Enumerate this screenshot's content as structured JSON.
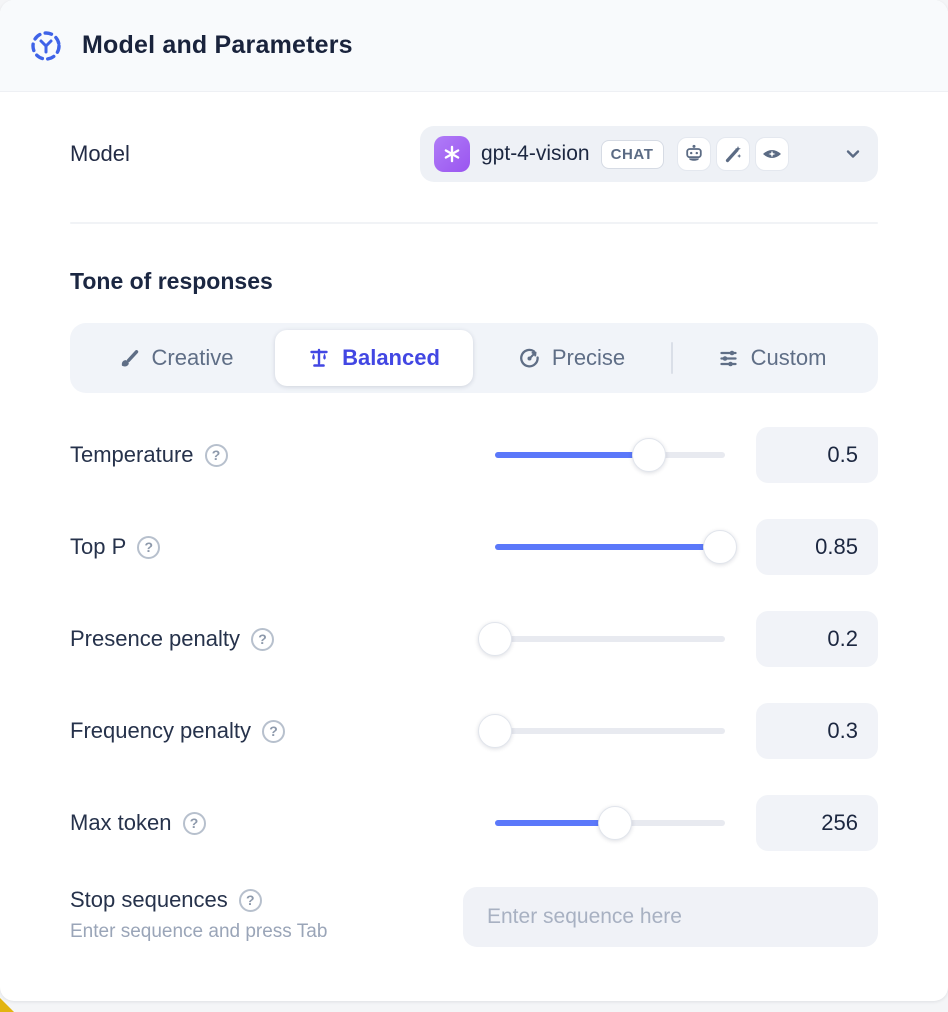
{
  "header": {
    "title": "Model and Parameters",
    "icon": "model-hub-icon"
  },
  "model": {
    "label": "Model",
    "selected": {
      "name": "gpt-4-vision",
      "provider_icon": "openai-logo",
      "type_badge": "CHAT",
      "capability_icons": [
        "chat-bot-icon",
        "magic-wand-icon",
        "vision-eye-icon"
      ]
    }
  },
  "tone": {
    "heading": "Tone of responses",
    "tabs": [
      {
        "label": "Creative",
        "icon": "paintbrush-icon",
        "selected": false
      },
      {
        "label": "Balanced",
        "icon": "balance-scale-icon",
        "selected": true
      },
      {
        "label": "Precise",
        "icon": "target-icon",
        "selected": false
      },
      {
        "label": "Custom",
        "icon": "sliders-icon",
        "selected": false
      }
    ]
  },
  "parameters": [
    {
      "label": "Temperature",
      "value": "0.5",
      "fill_pct": 67
    },
    {
      "label": "Top P",
      "value": "0.85",
      "fill_pct": 98
    },
    {
      "label": "Presence penalty",
      "value": "0.2",
      "fill_pct": 0
    },
    {
      "label": "Frequency penalty",
      "value": "0.3",
      "fill_pct": 0
    },
    {
      "label": "Max token",
      "value": "256",
      "fill_pct": 52
    }
  ],
  "stop_sequences": {
    "label": "Stop sequences",
    "helper": "Enter sequence and press Tab",
    "placeholder": "Enter sequence here"
  },
  "help_glyph": "?",
  "colors": {
    "accent_blue": "#4247e3",
    "slider_blue": "#5b78fa",
    "brand_purple": "#a667f0",
    "header_bg": "#f8fafc",
    "control_bg": "#eef1f6",
    "text_dark": "#1b2742",
    "text_muted": "#5f6e86",
    "corner_yellow": "#e2b410"
  }
}
